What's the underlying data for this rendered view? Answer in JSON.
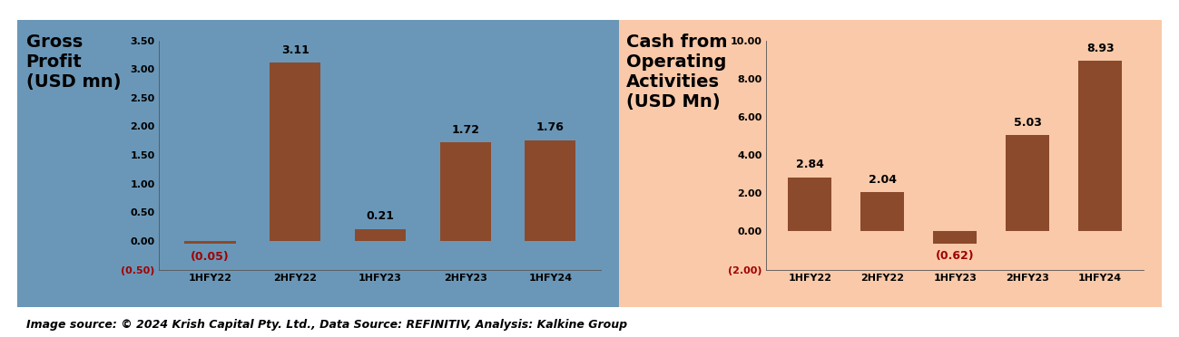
{
  "chart_data": [
    {
      "type": "bar",
      "title": "Gross Profit (USD mn)",
      "categories": [
        "1HFY22",
        "2HFY22",
        "1HFY23",
        "2HFY23",
        "1HFY24"
      ],
      "values": [
        -0.05,
        3.11,
        0.21,
        1.72,
        1.76
      ],
      "value_labels": [
        "(0.05)",
        "3.11",
        "0.21",
        "1.72",
        "1.76"
      ],
      "data_labels": true,
      "color": "#8b4a2b",
      "ylim": [
        -0.5,
        3.5
      ],
      "yticks": [
        {
          "value": -0.5,
          "label": "(0.50)"
        },
        {
          "value": 0,
          "label": "0.00"
        },
        {
          "value": 0.5,
          "label": "0.50"
        },
        {
          "value": 1.0,
          "label": "1.00"
        },
        {
          "value": 1.5,
          "label": "1.50"
        },
        {
          "value": 2.0,
          "label": "2.00"
        },
        {
          "value": 2.5,
          "label": "2.50"
        },
        {
          "value": 3.0,
          "label": "3.00"
        },
        {
          "value": 3.5,
          "label": "3.50"
        }
      ],
      "grid": false
    },
    {
      "type": "bar",
      "title": "Cash from Operating Activities (USD Mn)",
      "categories": [
        "1HFY22",
        "2HFY22",
        "1HFY23",
        "2HFY23",
        "1HFY24"
      ],
      "values": [
        2.84,
        2.04,
        -0.62,
        5.03,
        8.93
      ],
      "value_labels": [
        "2.84",
        "2.04",
        "(0.62)",
        "5.03",
        "8.93"
      ],
      "data_labels": true,
      "color": "#8b4a2b",
      "ylim": [
        -2,
        10
      ],
      "yticks": [
        {
          "value": -2,
          "label": "(2.00)"
        },
        {
          "value": 0,
          "label": "0.00"
        },
        {
          "value": 2,
          "label": "2.00"
        },
        {
          "value": 4,
          "label": "4.00"
        },
        {
          "value": 6,
          "label": "6.00"
        },
        {
          "value": 8,
          "label": "8.00"
        },
        {
          "value": 10,
          "label": "10.00"
        }
      ],
      "grid": false
    }
  ],
  "footer": "Image source: © 2024 Krish Capital Pty. Ltd., Data Source: REFINITIV, Analysis: Kalkine Group"
}
